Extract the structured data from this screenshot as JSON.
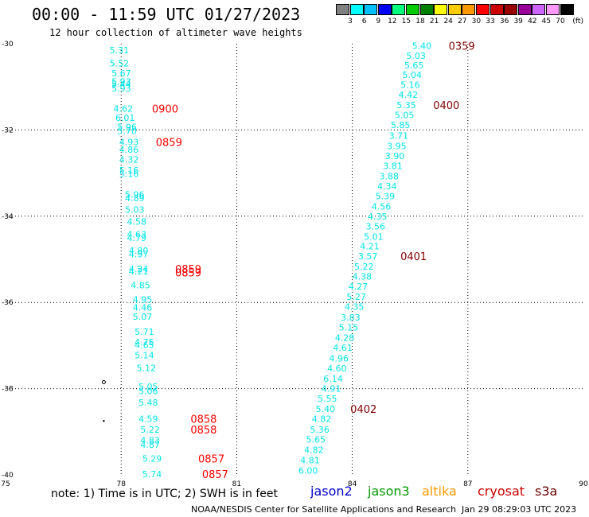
{
  "title": "00:00 - 11:59 UTC 01/27/2023",
  "subtitle": "12 hour collection of altimeter wave heights",
  "legend": {
    "unit_label": "(ft)",
    "bins": [
      {
        "color": "#808080",
        "label": "3"
      },
      {
        "color": "#00ffff",
        "label": "6"
      },
      {
        "color": "#00bfff",
        "label": "9"
      },
      {
        "color": "#0000ff",
        "label": "12"
      },
      {
        "color": "#00ff7f",
        "label": "15"
      },
      {
        "color": "#00cc00",
        "label": "18"
      },
      {
        "color": "#008000",
        "label": "21"
      },
      {
        "color": "#ffff00",
        "label": "24"
      },
      {
        "color": "#ffcc00",
        "label": "27"
      },
      {
        "color": "#ff9900",
        "label": "30"
      },
      {
        "color": "#ff0000",
        "label": "33"
      },
      {
        "color": "#cc0000",
        "label": "36"
      },
      {
        "color": "#990000",
        "label": "39"
      },
      {
        "color": "#990099",
        "label": "42"
      },
      {
        "color": "#cc66ff",
        "label": "45"
      },
      {
        "color": "#ff99ff",
        "label": "70"
      },
      {
        "color": "#000000",
        "label": ""
      }
    ]
  },
  "axes": {
    "x_range": [
      75,
      90
    ],
    "y_range": [
      -40,
      -30
    ],
    "x_ticks": [
      "75",
      "78",
      "81",
      "84",
      "87",
      "90"
    ],
    "x_tick_values": [
      75,
      78,
      81,
      84,
      87,
      90
    ],
    "y_ticks": [
      "-30",
      "-32",
      "-34",
      "-36",
      "-38",
      "-40"
    ],
    "y_tick_values": [
      -30,
      -32,
      -34,
      -36,
      -38,
      -40
    ]
  },
  "tracks": {
    "west": {
      "color": "#00e5e5",
      "points": [
        {
          "lon": 77.7,
          "lat": -30.15,
          "v": "5.31"
        },
        {
          "lon": 77.7,
          "lat": -30.45,
          "v": "5.52"
        },
        {
          "lon": 77.75,
          "lat": -30.68,
          "v": "5.67"
        },
        {
          "lon": 77.75,
          "lat": -30.88,
          "v": "5.93"
        },
        {
          "lon": 77.75,
          "lat": -30.93,
          "v": "5.44"
        },
        {
          "lon": 77.75,
          "lat": -31.03,
          "v": "5.93"
        },
        {
          "lon": 77.8,
          "lat": -31.5,
          "v": "4.62"
        },
        {
          "lon": 77.85,
          "lat": -31.72,
          "v": "6.01"
        },
        {
          "lon": 77.9,
          "lat": -31.93,
          "v": "5.96"
        },
        {
          "lon": 77.9,
          "lat": -32.02,
          "v": "5.70"
        },
        {
          "lon": 77.95,
          "lat": -32.28,
          "v": "4.93"
        },
        {
          "lon": 77.95,
          "lat": -32.45,
          "v": "4.86"
        },
        {
          "lon": 77.95,
          "lat": -32.68,
          "v": "4.32"
        },
        {
          "lon": 77.95,
          "lat": -32.93,
          "v": "5.16"
        },
        {
          "lon": 77.95,
          "lat": -33.02,
          "v": "5.16"
        },
        {
          "lon": 78.1,
          "lat": -33.5,
          "v": "5.96"
        },
        {
          "lon": 78.1,
          "lat": -33.58,
          "v": "4.89"
        },
        {
          "lon": 78.1,
          "lat": -33.85,
          "v": "5.03"
        },
        {
          "lon": 78.15,
          "lat": -34.12,
          "v": "4.58"
        },
        {
          "lon": 78.15,
          "lat": -34.42,
          "v": "4.63"
        },
        {
          "lon": 78.15,
          "lat": -34.5,
          "v": "4.79"
        },
        {
          "lon": 78.2,
          "lat": -34.8,
          "v": "4.80"
        },
        {
          "lon": 78.2,
          "lat": -34.88,
          "v": "4.97"
        },
        {
          "lon": 78.2,
          "lat": -35.22,
          "v": "4.24"
        },
        {
          "lon": 78.2,
          "lat": -35.28,
          "v": "4.21"
        },
        {
          "lon": 78.25,
          "lat": -35.6,
          "v": "4.85"
        },
        {
          "lon": 78.3,
          "lat": -35.93,
          "v": "4.95"
        },
        {
          "lon": 78.3,
          "lat": -36.12,
          "v": "4.46"
        },
        {
          "lon": 78.3,
          "lat": -36.33,
          "v": "5.07"
        },
        {
          "lon": 78.35,
          "lat": -36.68,
          "v": "5.71"
        },
        {
          "lon": 78.35,
          "lat": -36.92,
          "v": "4.75"
        },
        {
          "lon": 78.35,
          "lat": -36.98,
          "v": "4.65"
        },
        {
          "lon": 78.35,
          "lat": -37.22,
          "v": "5.14"
        },
        {
          "lon": 78.4,
          "lat": -37.52,
          "v": "5.12"
        },
        {
          "lon": 78.45,
          "lat": -37.95,
          "v": "5.05"
        },
        {
          "lon": 78.45,
          "lat": -38.05,
          "v": "5.06"
        },
        {
          "lon": 78.45,
          "lat": -38.32,
          "v": "5.48"
        },
        {
          "lon": 78.45,
          "lat": -38.7,
          "v": "4.59"
        },
        {
          "lon": 78.5,
          "lat": -38.95,
          "v": "5.22"
        },
        {
          "lon": 78.5,
          "lat": -39.2,
          "v": "4.83"
        },
        {
          "lon": 78.5,
          "lat": -39.3,
          "v": "4.87"
        },
        {
          "lon": 78.55,
          "lat": -39.62,
          "v": "5.29"
        },
        {
          "lon": 78.55,
          "lat": -39.98,
          "v": "5.74"
        }
      ],
      "times": [
        {
          "lon": 78.8,
          "lat": -31.5,
          "t": "0900"
        },
        {
          "lon": 78.9,
          "lat": -32.28,
          "t": "0859"
        },
        {
          "lon": 79.4,
          "lat": -35.22,
          "t": "0859"
        },
        {
          "lon": 79.4,
          "lat": -35.3,
          "t": "0859"
        },
        {
          "lon": 79.8,
          "lat": -38.7,
          "t": "0858"
        },
        {
          "lon": 79.8,
          "lat": -38.95,
          "t": "0858"
        },
        {
          "lon": 80.0,
          "lat": -39.62,
          "t": "0857"
        },
        {
          "lon": 80.1,
          "lat": -39.98,
          "t": "0857"
        }
      ],
      "time_color": "#ff0000"
    },
    "east": {
      "color": "#00e5e5",
      "points": [
        {
          "lon": 85.55,
          "lat": -30.05,
          "v": "5.40"
        },
        {
          "lon": 85.4,
          "lat": -30.28,
          "v": "5.03"
        },
        {
          "lon": 85.35,
          "lat": -30.5,
          "v": "5.65"
        },
        {
          "lon": 85.3,
          "lat": -30.72,
          "v": "5.04"
        },
        {
          "lon": 85.25,
          "lat": -30.95,
          "v": "5.16"
        },
        {
          "lon": 85.2,
          "lat": -31.18,
          "v": "4.42"
        },
        {
          "lon": 85.15,
          "lat": -31.42,
          "v": "5.35"
        },
        {
          "lon": 85.1,
          "lat": -31.65,
          "v": "5.05"
        },
        {
          "lon": 85.0,
          "lat": -31.88,
          "v": "5.85"
        },
        {
          "lon": 84.95,
          "lat": -32.13,
          "v": "3.71"
        },
        {
          "lon": 84.9,
          "lat": -32.37,
          "v": "3.95"
        },
        {
          "lon": 84.85,
          "lat": -32.6,
          "v": "3.90"
        },
        {
          "lon": 84.8,
          "lat": -32.83,
          "v": "3.81"
        },
        {
          "lon": 84.7,
          "lat": -33.07,
          "v": "3.88"
        },
        {
          "lon": 84.65,
          "lat": -33.3,
          "v": "4.34"
        },
        {
          "lon": 84.6,
          "lat": -33.53,
          "v": "5.39"
        },
        {
          "lon": 84.5,
          "lat": -33.77,
          "v": "4.56"
        },
        {
          "lon": 84.4,
          "lat": -34.0,
          "v": "4.35"
        },
        {
          "lon": 84.35,
          "lat": -34.23,
          "v": "3.56"
        },
        {
          "lon": 84.3,
          "lat": -34.47,
          "v": "5.01"
        },
        {
          "lon": 84.2,
          "lat": -34.7,
          "v": "4.21"
        },
        {
          "lon": 84.15,
          "lat": -34.93,
          "v": "3.57"
        },
        {
          "lon": 84.05,
          "lat": -35.17,
          "v": "5.22"
        },
        {
          "lon": 84.0,
          "lat": -35.4,
          "v": "4.38"
        },
        {
          "lon": 83.9,
          "lat": -35.63,
          "v": "4.27"
        },
        {
          "lon": 83.85,
          "lat": -35.87,
          "v": "5.27"
        },
        {
          "lon": 83.8,
          "lat": -36.1,
          "v": "4.35"
        },
        {
          "lon": 83.7,
          "lat": -36.35,
          "v": "3.83"
        },
        {
          "lon": 83.65,
          "lat": -36.58,
          "v": "5.15"
        },
        {
          "lon": 83.55,
          "lat": -36.82,
          "v": "4.28"
        },
        {
          "lon": 83.5,
          "lat": -37.05,
          "v": "4.61"
        },
        {
          "lon": 83.4,
          "lat": -37.3,
          "v": "4.96"
        },
        {
          "lon": 83.35,
          "lat": -37.53,
          "v": "4.60"
        },
        {
          "lon": 83.25,
          "lat": -37.77,
          "v": "6.14"
        },
        {
          "lon": 83.2,
          "lat": -38.0,
          "v": "4.91"
        },
        {
          "lon": 83.1,
          "lat": -38.23,
          "v": "5.55"
        },
        {
          "lon": 83.05,
          "lat": -38.47,
          "v": "5.40"
        },
        {
          "lon": 82.95,
          "lat": -38.7,
          "v": "4.82"
        },
        {
          "lon": 82.9,
          "lat": -38.95,
          "v": "5.36"
        },
        {
          "lon": 82.8,
          "lat": -39.18,
          "v": "5.65"
        },
        {
          "lon": 82.75,
          "lat": -39.42,
          "v": "4.82"
        },
        {
          "lon": 82.65,
          "lat": -39.66,
          "v": "4.81"
        },
        {
          "lon": 82.6,
          "lat": -39.9,
          "v": "6.00"
        }
      ],
      "times": [
        {
          "lon": 86.5,
          "lat": -30.05,
          "t": "0359"
        },
        {
          "lon": 86.1,
          "lat": -31.42,
          "t": "0400"
        },
        {
          "lon": 85.25,
          "lat": -34.93,
          "t": "0401"
        },
        {
          "lon": 83.95,
          "lat": -38.47,
          "t": "0402"
        }
      ],
      "time_color": "#800000"
    }
  },
  "markers": [
    {
      "lon": 77.55,
      "lat": -37.85,
      "kind": "o"
    },
    {
      "lon": 77.55,
      "lat": -38.75,
      "kind": "dot"
    }
  ],
  "footer": {
    "note": "note: 1) Time is in UTC; 2) SWH is in feet",
    "satellites": [
      {
        "name": "jason2",
        "color": "#0000cc",
        "left": 390
      },
      {
        "name": "jason3",
        "color": "#009900",
        "left": 462
      },
      {
        "name": "altika",
        "color": "#ff9900",
        "left": 530
      },
      {
        "name": "cryosat",
        "color": "#cc0000",
        "left": 600
      },
      {
        "name": "s3a",
        "color": "#660000",
        "left": 672
      }
    ],
    "credit": "NOAA/NESDIS Center for Satellite Applications and Research",
    "stamp": "Jan 29 08:29:03 UTC 2023"
  }
}
